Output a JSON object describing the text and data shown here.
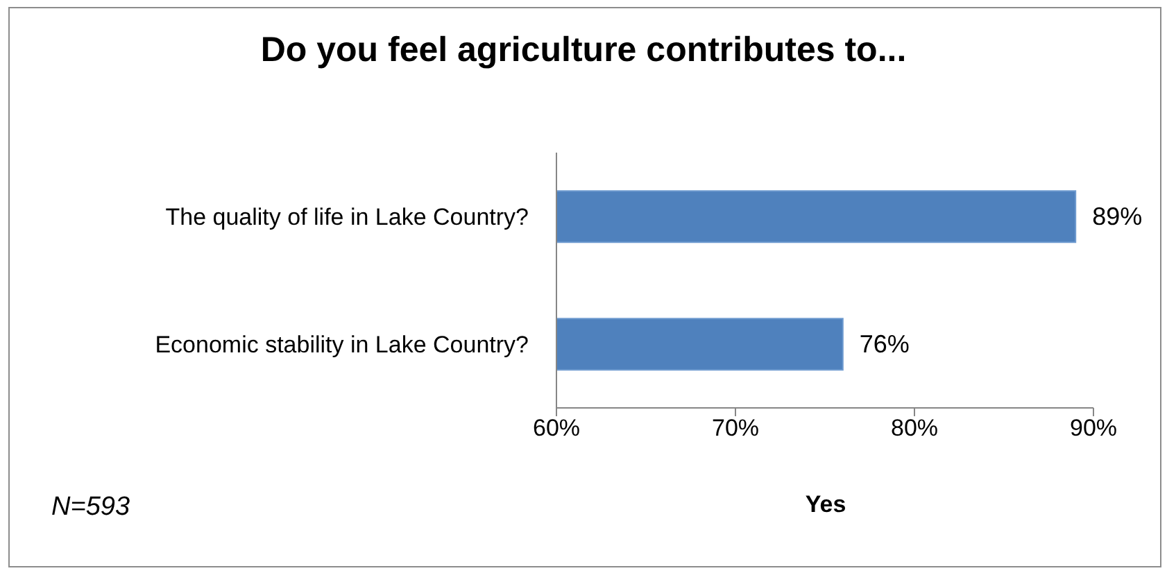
{
  "chart_data": {
    "type": "bar",
    "orientation": "horizontal",
    "title": "Do you feel agriculture contributes to...",
    "xlabel": "Yes",
    "annotations": [
      "N=593"
    ],
    "categories": [
      "The quality of life in Lake Country?",
      "Economic stability in Lake Country?"
    ],
    "values": [
      89,
      76
    ],
    "value_labels": [
      "89%",
      "76%"
    ],
    "color": "#4f81bd",
    "xlim": [
      60,
      90
    ],
    "xticks": [
      {
        "value": 60,
        "label": "60%"
      },
      {
        "value": 70,
        "label": "70%"
      },
      {
        "value": 80,
        "label": "80%"
      },
      {
        "value": 90,
        "label": "90%"
      }
    ]
  }
}
